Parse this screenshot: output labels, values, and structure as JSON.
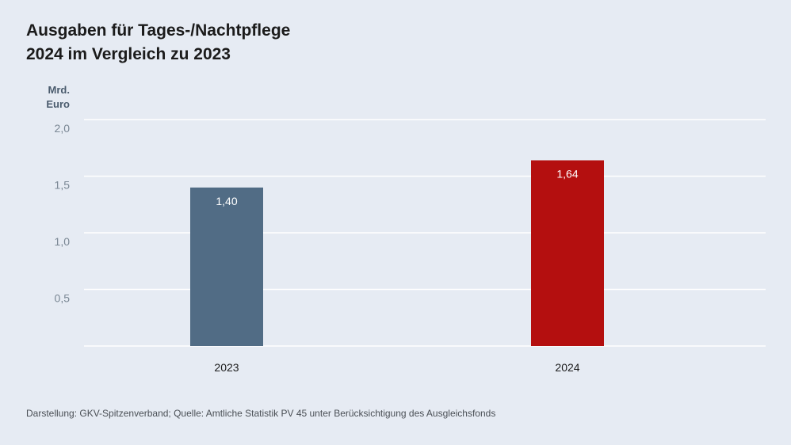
{
  "chart_data": {
    "type": "bar",
    "title_lines": [
      "Ausgaben für Tages-/Nachtpflege",
      "2024 im Vergleich zu 2023"
    ],
    "ylabel_lines": [
      "Mrd.",
      "Euro"
    ],
    "categories": [
      "2023",
      "2024"
    ],
    "values": [
      1.4,
      1.64
    ],
    "value_labels": [
      "1,40",
      "1,64"
    ],
    "ylim": [
      0,
      2.0
    ],
    "yticks": [
      0.5,
      1.0,
      1.5,
      2.0
    ],
    "ytick_labels": [
      "0,5",
      "1,0",
      "1,5",
      "2,0"
    ],
    "grid": true,
    "colors": [
      "#516c85",
      "#b40f0f"
    ],
    "source": "Darstellung: GKV-Spitzenverband; Quelle: Amtliche Statistik PV 45 unter Berücksichtigung des Ausgleichsfonds"
  },
  "theme": {
    "background": "#e6ebf3",
    "gridline": "#ffffff",
    "tick_label": "#7a8794",
    "category_label": "#1b1b1b",
    "value_label": "#ffffff"
  }
}
